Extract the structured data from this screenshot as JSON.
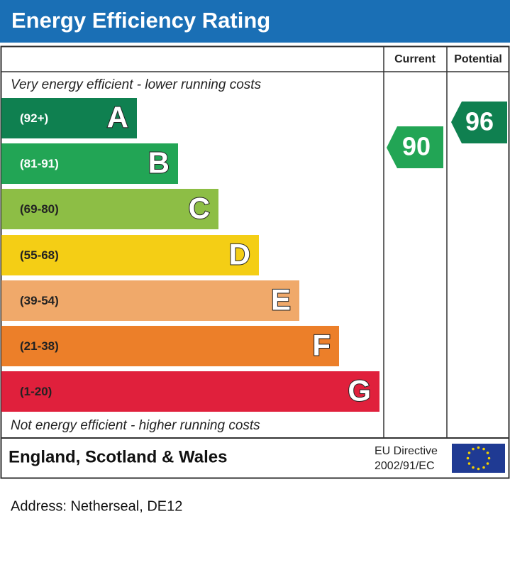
{
  "header": {
    "title": "Energy Efficiency Rating"
  },
  "columns": {
    "current": "Current",
    "potential": "Potential"
  },
  "top_note": "Very energy efficient - lower running costs",
  "bottom_note": "Not energy efficient - higher running costs",
  "bands": [
    {
      "range": "(92+)",
      "letter": "A",
      "color": "#0f8050"
    },
    {
      "range": "(81-91)",
      "letter": "B",
      "color": "#22a555"
    },
    {
      "range": "(69-80)",
      "letter": "C",
      "color": "#8dbe45"
    },
    {
      "range": "(55-68)",
      "letter": "D",
      "color": "#f4ce15"
    },
    {
      "range": "(39-54)",
      "letter": "E",
      "color": "#f0a96a"
    },
    {
      "range": "(21-38)",
      "letter": "F",
      "color": "#ec7f29"
    },
    {
      "range": "(1-20)",
      "letter": "G",
      "color": "#e0203c"
    }
  ],
  "current": {
    "value": "90",
    "color": "#22a555"
  },
  "potential": {
    "value": "96",
    "color": "#0f8050"
  },
  "footer": {
    "region": "England, Scotland & Wales",
    "directive_line1": "EU Directive",
    "directive_line2": "2002/91/EC"
  },
  "address": "Address: Netherseal, DE12"
}
